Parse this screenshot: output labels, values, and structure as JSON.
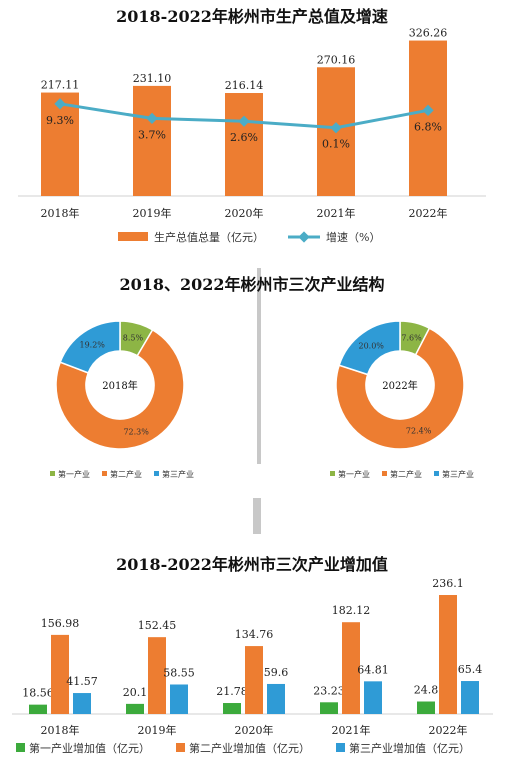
{
  "chart_data": [
    {
      "type": "bar",
      "title": "2018-2022年彬州市生产总值及增速",
      "categories": [
        "2018年",
        "2019年",
        "2020年",
        "2021年",
        "2022年"
      ],
      "series": [
        {
          "name": "生产总值总量（亿元）",
          "type": "bar",
          "values": [
            217.11,
            231.1,
            216.14,
            270.16,
            326.26
          ],
          "labels": [
            "217.11",
            "231.10",
            "216.14",
            "270.16",
            "326.26"
          ],
          "color": "#ED7D31"
        },
        {
          "name": "增速（%）",
          "type": "line",
          "values": [
            9.3,
            3.7,
            2.6,
            0.1,
            6.8
          ],
          "labels": [
            "9.3%",
            "3.7%",
            "2.6%",
            "0.1%",
            "6.8%"
          ],
          "color": "#4BACC6"
        }
      ],
      "ylim": [
        0,
        340
      ]
    },
    {
      "type": "pie",
      "title": "2018、2022年彬州市三次产业结构",
      "legend": [
        "第一产业",
        "第二产业",
        "第三产业"
      ],
      "colors": [
        "#8DB545",
        "#ED7D31",
        "#2F9BD6"
      ],
      "pies": [
        {
          "label": "2018年",
          "values": [
            8.5,
            72.3,
            19.2
          ],
          "labels": [
            "8.5%",
            "72.3%",
            "19.2%"
          ]
        },
        {
          "label": "2022年",
          "values": [
            7.6,
            72.4,
            20.0
          ],
          "labels": [
            "7.6%",
            "72.4%",
            "20.0%"
          ]
        }
      ]
    },
    {
      "type": "bar",
      "title": "2018-2022年彬州市三次产业增加值",
      "categories": [
        "2018年",
        "2019年",
        "2020年",
        "2021年",
        "2022年"
      ],
      "series": [
        {
          "name": "第一产业增加值（亿元）",
          "values": [
            18.56,
            20.1,
            21.78,
            23.23,
            24.8
          ],
          "labels": [
            "18.56",
            "20.1",
            "21.78",
            "23.23",
            "24.8"
          ],
          "color": "#3CAA3C"
        },
        {
          "name": "第二产业增加值（亿元）",
          "values": [
            156.98,
            152.45,
            134.76,
            182.12,
            236.1
          ],
          "labels": [
            "156.98",
            "152.45",
            "134.76",
            "182.12",
            "236.1"
          ],
          "color": "#ED7D31"
        },
        {
          "name": "第三产业增加值（亿元）",
          "values": [
            41.57,
            58.55,
            59.6,
            64.81,
            65.4
          ],
          "labels": [
            "41.57",
            "58.55",
            "59.6",
            "64.81",
            "65.4"
          ],
          "color": "#2F9BD6"
        }
      ],
      "ylim": [
        0,
        250
      ]
    }
  ]
}
